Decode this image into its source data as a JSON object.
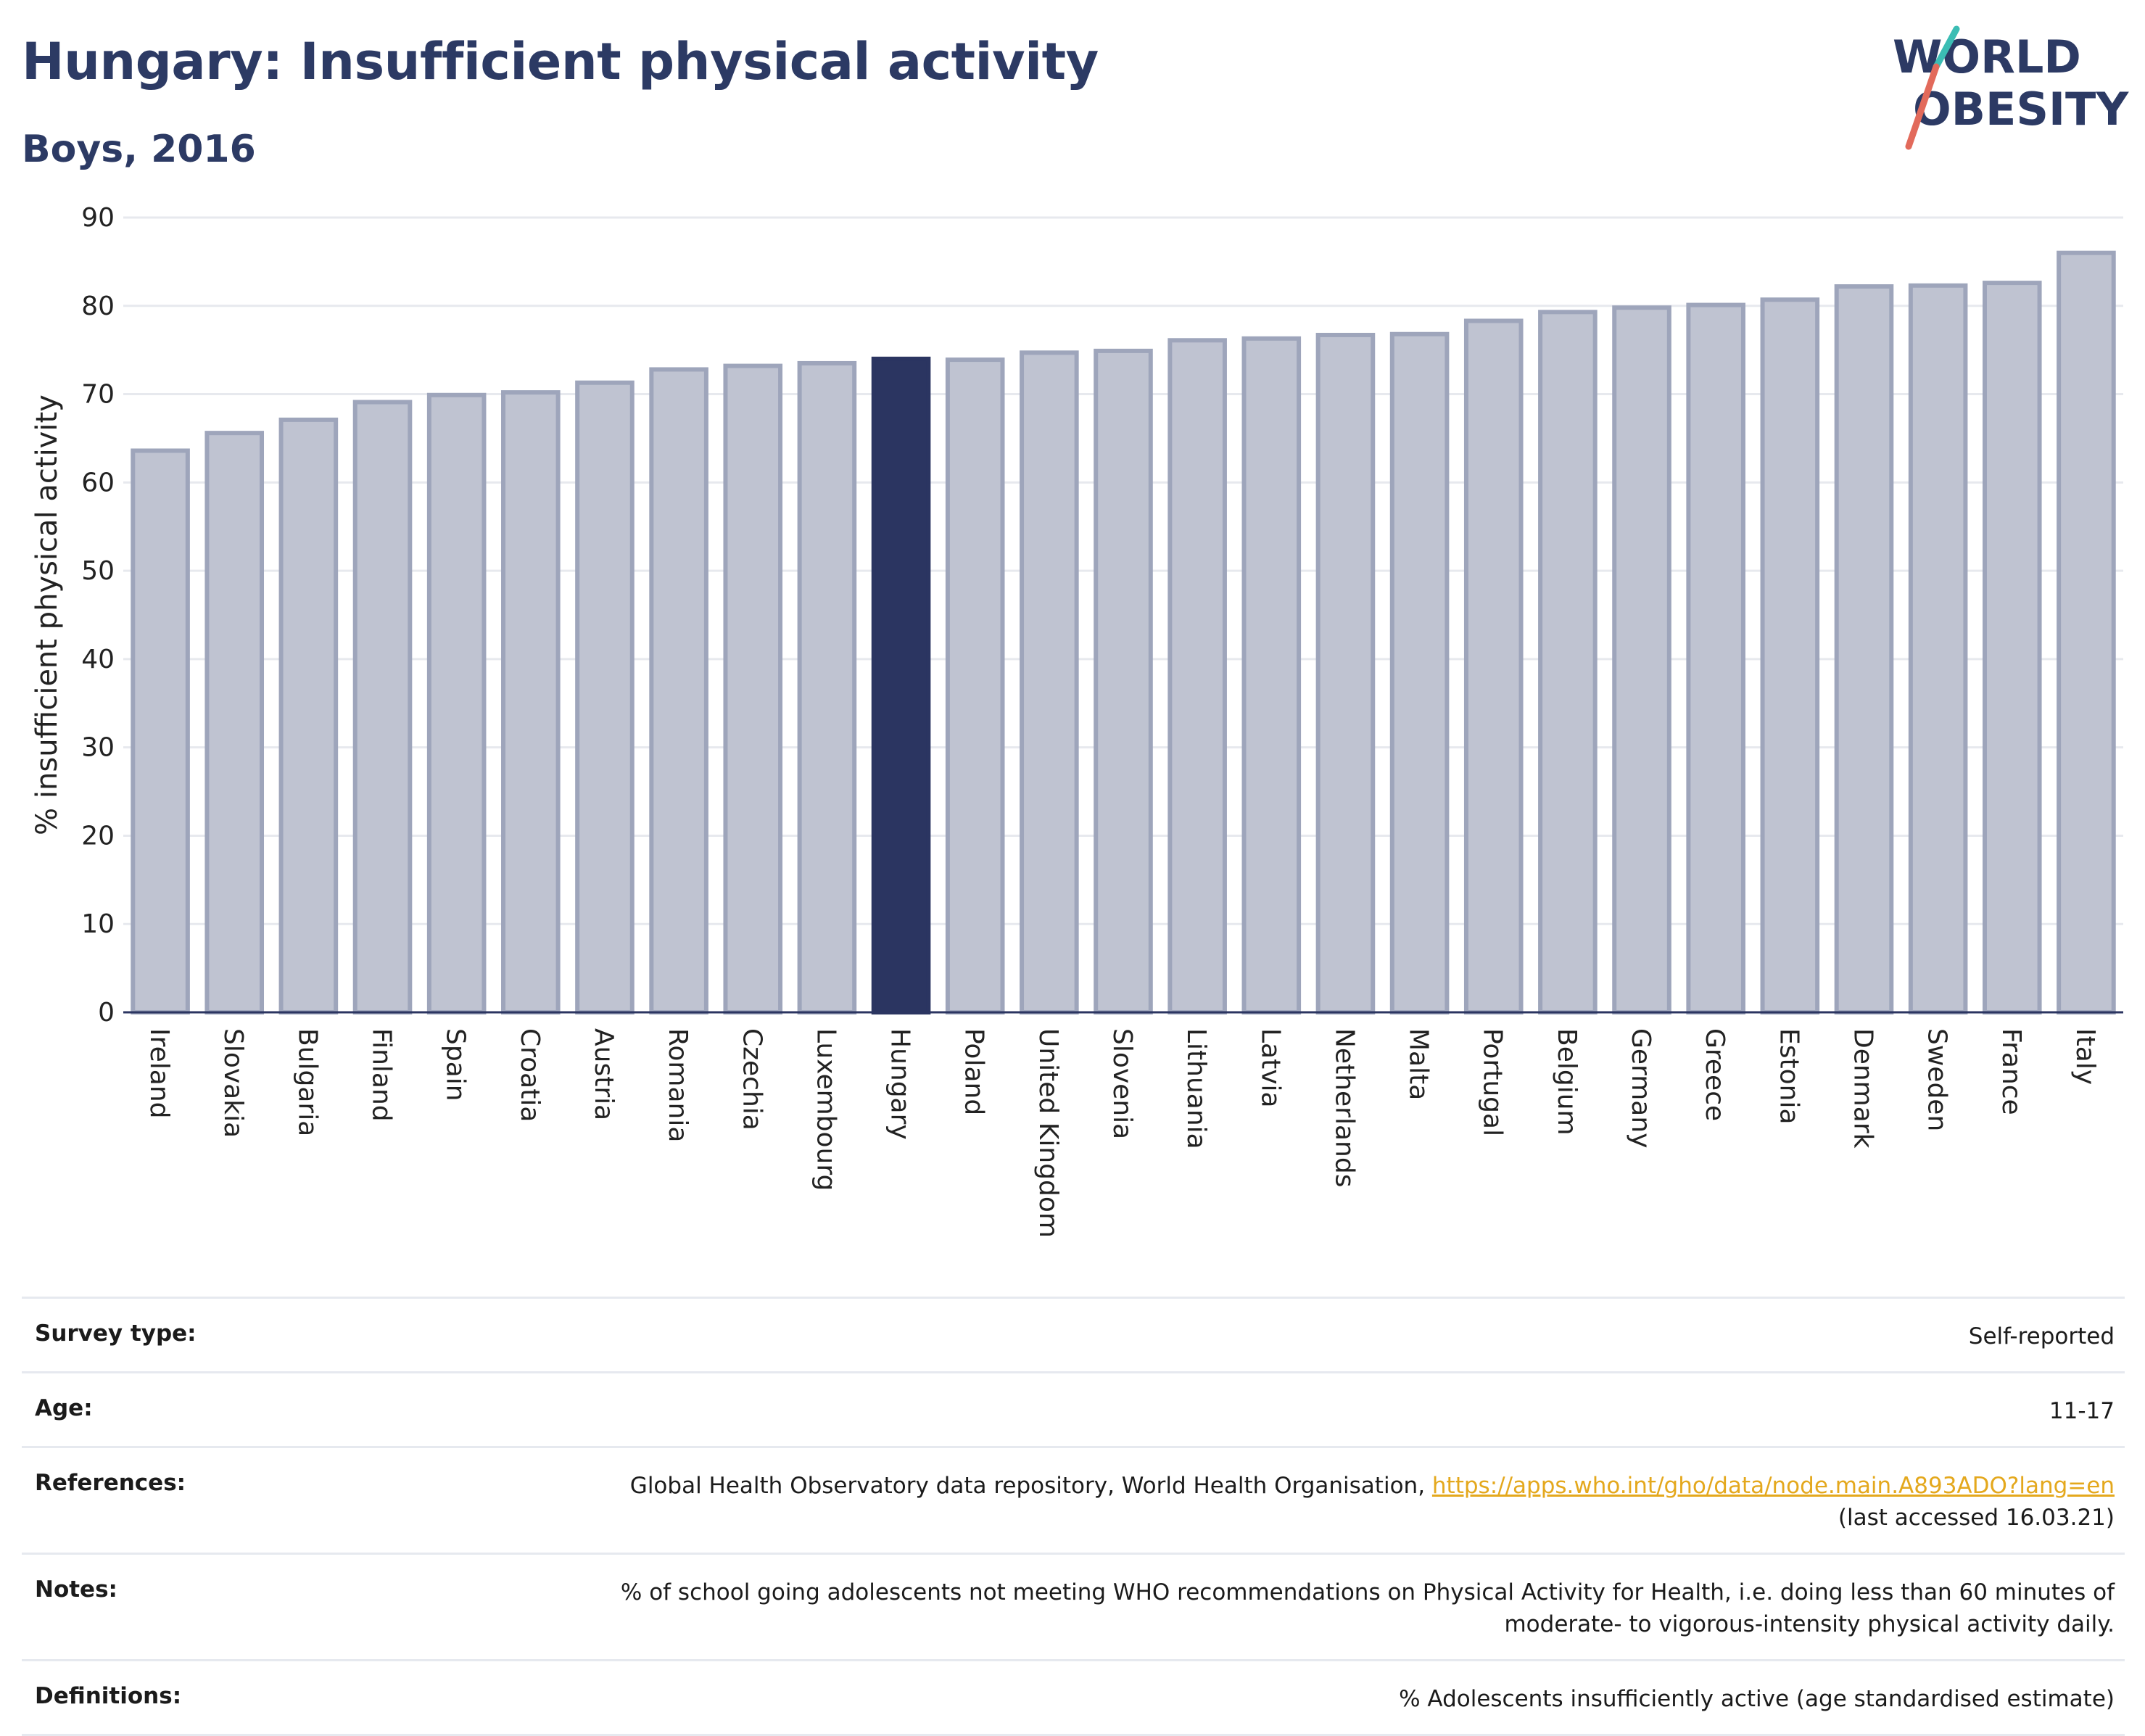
{
  "header": {
    "title": "Hungary: Insufficient physical activity",
    "subtitle": "Boys, 2016"
  },
  "logo": {
    "line1": "WORLD",
    "line2": "OBESITY"
  },
  "colors": {
    "bar": "#bfc3d1",
    "bar_border": "#9ea5bb",
    "highlight": "#2b3561",
    "title": "#2c3a64",
    "link": "#e4a81d",
    "logo_teal": "#3bbdb4",
    "logo_coral": "#e26a5b"
  },
  "chart_data": {
    "type": "bar",
    "title": "",
    "xlabel": "",
    "ylabel": "% insufficient physical activity",
    "ylim": [
      0,
      90
    ],
    "yticks": [
      0,
      10,
      20,
      30,
      40,
      50,
      60,
      70,
      80,
      90
    ],
    "grid": true,
    "highlight": "Hungary",
    "categories": [
      "Ireland",
      "Slovakia",
      "Bulgaria",
      "Finland",
      "Spain",
      "Croatia",
      "Austria",
      "Romania",
      "Czechia",
      "Luxembourg",
      "Hungary",
      "Poland",
      "United Kingdom",
      "Slovenia",
      "Lithuania",
      "Latvia",
      "Netherlands",
      "Malta",
      "Portugal",
      "Belgium",
      "Germany",
      "Greece",
      "Estonia",
      "Denmark",
      "Sweden",
      "France",
      "Italy"
    ],
    "values": [
      63.6,
      65.6,
      67.1,
      69.1,
      69.9,
      70.2,
      71.3,
      72.8,
      73.2,
      73.5,
      74.0,
      73.9,
      74.7,
      74.9,
      76.1,
      76.3,
      76.7,
      76.8,
      78.3,
      79.3,
      79.8,
      80.1,
      80.7,
      82.2,
      82.3,
      82.6,
      86.0
    ]
  },
  "info": {
    "survey_type_label": "Survey type:",
    "survey_type_value": "Self-reported",
    "age_label": "Age:",
    "age_value": "11-17",
    "references_label": "References:",
    "references_text": "Global Health Observatory data repository, World Health Organisation, ",
    "references_link": "https://apps.who.int/gho/data/node.main.A893ADO?lang=en",
    "references_accessed": "(last accessed 16.03.21)",
    "notes_label": "Notes:",
    "notes_line1": "% of school going adolescents not meeting WHO recommendations on Physical Activity for Health, i.e. doing less than 60 minutes of",
    "notes_line2": "moderate- to vigorous-intensity physical activity daily.",
    "definitions_label": "Definitions:",
    "definitions_value": "% Adolescents insufficiently active (age standardised estimate)"
  }
}
